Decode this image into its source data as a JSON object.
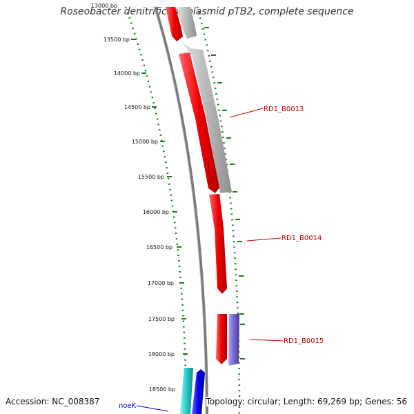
{
  "title": "Roseobacter denitrificans plasmid pTB2, complete sequence",
  "ticks": [
    {
      "label": "13000 bp"
    },
    {
      "label": "13500 bp"
    },
    {
      "label": "14000 bp"
    },
    {
      "label": "14500 bp"
    },
    {
      "label": "15000 bp"
    },
    {
      "label": "15500 bp"
    },
    {
      "label": "16000 bp"
    },
    {
      "label": "16500 bp"
    },
    {
      "label": "17000 bp"
    },
    {
      "label": "17500 bp"
    },
    {
      "label": "18000 bp"
    },
    {
      "label": "18500 bp"
    }
  ],
  "genes": [
    {
      "label": "RD1_B0013",
      "color": "#cc0000"
    },
    {
      "label": "RD1_B0014",
      "color": "#cc0000"
    },
    {
      "label": "RD1_B0015",
      "color": "#cc0000"
    },
    {
      "label": "noeK",
      "color": "#0000cc"
    }
  ],
  "colors": {
    "forward_gene": "#ee0000",
    "reverse_gene": "#b0b0b0",
    "blue_gene": "#0000ee",
    "cyan_gene": "#22cccc",
    "purple_gene": "#7766cc",
    "ticks": "#1a7a1a",
    "backbone": "#7a7a7a"
  },
  "footer": {
    "accession": "Accession: NC_008387",
    "summary": "Topology: circular; Length: 69,269 bp; Genes: 56"
  }
}
